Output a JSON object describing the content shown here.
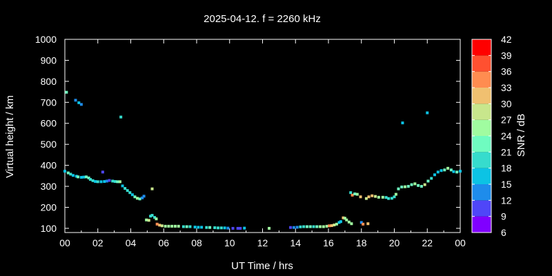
{
  "chart_data": {
    "type": "scatter",
    "title": "2025-04-12. f = 2260 kHz",
    "xlabel": "UT Time / hrs",
    "ylabel": "Virtual height / km",
    "xlim": [
      0,
      24
    ],
    "ylim": [
      80,
      1000
    ],
    "xticks": [
      "00",
      "02",
      "04",
      "06",
      "08",
      "10",
      "12",
      "14",
      "16",
      "18",
      "20",
      "22",
      "00"
    ],
    "yticks": [
      100,
      200,
      300,
      400,
      500,
      600,
      700,
      800,
      900,
      1000
    ],
    "grid": false,
    "colorbar": {
      "label": "SNR / dB",
      "ticks": [
        6,
        9,
        12,
        15,
        18,
        21,
        24,
        27,
        30,
        33,
        36,
        39,
        42
      ],
      "colors": [
        "#8000ff",
        "#4f46f8",
        "#1e8ceb",
        "#0cc3e4",
        "#36dccd",
        "#6ffcc0",
        "#a0fca0",
        "#c8e68c",
        "#f0c070",
        "#ff8c50",
        "#ff5030",
        "#ff0000"
      ]
    },
    "points_columns": [
      "hour",
      "height_km",
      "snr_db"
    ],
    "points": [
      [
        0.0,
        372,
        17
      ],
      [
        0.2,
        364,
        21
      ],
      [
        0.35,
        358,
        18
      ],
      [
        0.5,
        352,
        15
      ],
      [
        0.7,
        348,
        15
      ],
      [
        0.8,
        345,
        21
      ],
      [
        1.0,
        343,
        15
      ],
      [
        1.15,
        344,
        15
      ],
      [
        1.3,
        345,
        22
      ],
      [
        1.45,
        340,
        22
      ],
      [
        1.55,
        333,
        20
      ],
      [
        1.7,
        327,
        20
      ],
      [
        1.85,
        323,
        17
      ],
      [
        2.0,
        322,
        20
      ],
      [
        2.2,
        322,
        15
      ],
      [
        2.4,
        323,
        15
      ],
      [
        2.55,
        325,
        12
      ],
      [
        2.7,
        328,
        10
      ],
      [
        2.9,
        325,
        20
      ],
      [
        3.05,
        323,
        20
      ],
      [
        3.2,
        322,
        22
      ],
      [
        3.35,
        322,
        24
      ],
      [
        3.5,
        302,
        17
      ],
      [
        3.65,
        290,
        18
      ],
      [
        3.8,
        280,
        20
      ],
      [
        3.95,
        270,
        18
      ],
      [
        4.1,
        260,
        15
      ],
      [
        4.25,
        250,
        22
      ],
      [
        4.4,
        243,
        24
      ],
      [
        4.55,
        240,
        22
      ],
      [
        4.7,
        245,
        12
      ],
      [
        4.8,
        253,
        12
      ],
      [
        0.1,
        748,
        22
      ],
      [
        0.65,
        710,
        13
      ],
      [
        0.85,
        698,
        15
      ],
      [
        1.0,
        690,
        13
      ],
      [
        2.3,
        368,
        10
      ],
      [
        3.4,
        630,
        20
      ],
      [
        5.3,
        288,
        28
      ],
      [
        4.95,
        140,
        25
      ],
      [
        5.1,
        138,
        27
      ],
      [
        5.2,
        158,
        20
      ],
      [
        5.3,
        162,
        20
      ],
      [
        5.45,
        152,
        19
      ],
      [
        5.55,
        145,
        24
      ],
      [
        5.6,
        120,
        33
      ],
      [
        5.75,
        115,
        32
      ],
      [
        5.9,
        112,
        27
      ],
      [
        6.1,
        110,
        24
      ],
      [
        6.3,
        110,
        24
      ],
      [
        6.5,
        110,
        25
      ],
      [
        6.7,
        110,
        24
      ],
      [
        6.9,
        110,
        24
      ],
      [
        7.2,
        108,
        20
      ],
      [
        7.4,
        108,
        22
      ],
      [
        7.6,
        108,
        19
      ],
      [
        7.9,
        106,
        16
      ],
      [
        8.1,
        105,
        15
      ],
      [
        8.3,
        105,
        15
      ],
      [
        8.6,
        104,
        20
      ],
      [
        8.8,
        104,
        21
      ],
      [
        9.1,
        103,
        18
      ],
      [
        9.3,
        102,
        18
      ],
      [
        9.5,
        102,
        20
      ],
      [
        9.7,
        102,
        17
      ],
      [
        9.9,
        101,
        14
      ],
      [
        10.2,
        100,
        10
      ],
      [
        10.5,
        100,
        10
      ],
      [
        10.65,
        100,
        10
      ],
      [
        10.9,
        101,
        15
      ],
      [
        12.4,
        100,
        24
      ],
      [
        13.7,
        104,
        10
      ],
      [
        13.9,
        104,
        12
      ],
      [
        14.1,
        105,
        13
      ],
      [
        14.3,
        107,
        18
      ],
      [
        14.5,
        108,
        20
      ],
      [
        14.7,
        108,
        22
      ],
      [
        14.9,
        108,
        22
      ],
      [
        15.1,
        108,
        20
      ],
      [
        15.3,
        108,
        22
      ],
      [
        15.5,
        108,
        24
      ],
      [
        15.7,
        108,
        25
      ],
      [
        15.9,
        110,
        26
      ],
      [
        16.05,
        112,
        33
      ],
      [
        16.2,
        113,
        30
      ],
      [
        16.35,
        116,
        27
      ],
      [
        16.5,
        120,
        24
      ],
      [
        16.65,
        128,
        15
      ],
      [
        16.75,
        132,
        15
      ],
      [
        16.9,
        150,
        31
      ],
      [
        17.0,
        148,
        25
      ],
      [
        17.1,
        140,
        24
      ],
      [
        17.25,
        130,
        24
      ],
      [
        17.4,
        122,
        25
      ],
      [
        18.0,
        128,
        13
      ],
      [
        18.1,
        120,
        34
      ],
      [
        18.4,
        122,
        31
      ],
      [
        17.35,
        270,
        19
      ],
      [
        17.45,
        258,
        33
      ],
      [
        17.6,
        264,
        22
      ],
      [
        17.75,
        262,
        24
      ],
      [
        17.95,
        250,
        31
      ],
      [
        18.3,
        242,
        28
      ],
      [
        18.45,
        250,
        31
      ],
      [
        18.65,
        255,
        31
      ],
      [
        18.85,
        252,
        27
      ],
      [
        19.05,
        248,
        25
      ],
      [
        19.3,
        248,
        24
      ],
      [
        19.5,
        247,
        18
      ],
      [
        19.65,
        242,
        20
      ],
      [
        19.85,
        243,
        20
      ],
      [
        20.0,
        250,
        18
      ],
      [
        20.1,
        262,
        24
      ],
      [
        20.25,
        288,
        22
      ],
      [
        20.45,
        297,
        22
      ],
      [
        20.65,
        298,
        24
      ],
      [
        20.85,
        300,
        23
      ],
      [
        21.05,
        308,
        22
      ],
      [
        21.25,
        312,
        25
      ],
      [
        21.45,
        304,
        23
      ],
      [
        21.65,
        300,
        22
      ],
      [
        21.85,
        308,
        27
      ],
      [
        22.05,
        325,
        22
      ],
      [
        22.25,
        338,
        19
      ],
      [
        22.45,
        355,
        16
      ],
      [
        22.65,
        368,
        15
      ],
      [
        22.85,
        375,
        15
      ],
      [
        23.05,
        378,
        22
      ],
      [
        23.25,
        386,
        24
      ],
      [
        23.45,
        378,
        22
      ],
      [
        23.6,
        370,
        17
      ],
      [
        23.8,
        368,
        22
      ],
      [
        24.0,
        372,
        16
      ],
      [
        20.5,
        602,
        16
      ],
      [
        22.0,
        650,
        16
      ]
    ]
  }
}
